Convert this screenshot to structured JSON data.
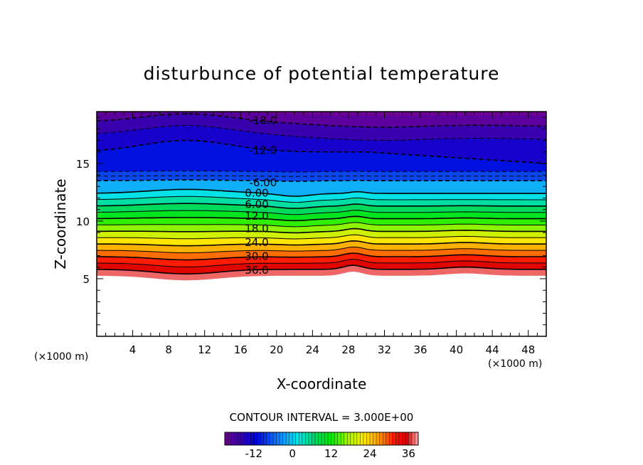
{
  "chart_data": {
    "type": "contour",
    "title": "disturbunce of potential temperature",
    "xlabel": "X-coordinate",
    "ylabel": "Z-coordinate",
    "x_unit_left": "(×1000 m)",
    "x_unit_right": "(×1000 m)",
    "xlim": [
      0,
      50
    ],
    "ylim": [
      0,
      19.5
    ],
    "x_ticks": [
      4,
      8,
      12,
      16,
      20,
      24,
      28,
      32,
      36,
      40,
      44,
      48
    ],
    "x_tick_labels": [
      "4",
      "8",
      "12",
      "16",
      "20",
      "24",
      "28",
      "32",
      "36",
      "40",
      "44",
      "48"
    ],
    "y_ticks": [
      5,
      10,
      15
    ],
    "y_tick_labels": [
      "5",
      "10",
      "15"
    ],
    "contour_interval_text": "CONTOUR INTERVAL = 3.000E+00",
    "contour_interval": 3,
    "contour_labels": [
      {
        "text": "-18.0",
        "x": 18.5,
        "y": 18.8
      },
      {
        "text": "-12.0",
        "x": 18.5,
        "y": 16.2
      },
      {
        "text": "-6.00",
        "x": 18.5,
        "y": 13.4
      },
      {
        "text": "0.00",
        "x": 17.8,
        "y": 12.5
      },
      {
        "text": "6.00",
        "x": 17.8,
        "y": 11.5
      },
      {
        "text": "12.0",
        "x": 17.8,
        "y": 10.5
      },
      {
        "text": "18.0",
        "x": 17.8,
        "y": 9.4
      },
      {
        "text": "24.0",
        "x": 17.8,
        "y": 8.2
      },
      {
        "text": "30.0",
        "x": 17.8,
        "y": 7.0
      },
      {
        "text": "36.0",
        "x": 17.8,
        "y": 5.8
      }
    ],
    "colorbar": {
      "min": -21,
      "max": 39,
      "ticks": [
        -12,
        0,
        12,
        24,
        36
      ],
      "tick_labels": [
        "-12",
        "0",
        "12",
        "24",
        "36"
      ]
    }
  }
}
